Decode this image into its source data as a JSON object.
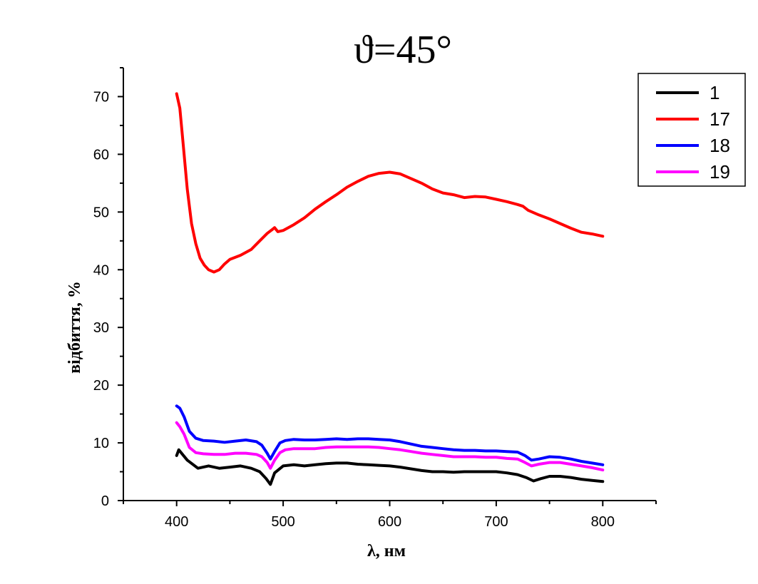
{
  "chart_data": {
    "type": "line",
    "title": "ϑ=45°",
    "xlabel": "λ, нм",
    "ylabel": "відбиття, %",
    "xlim": [
      350,
      850
    ],
    "ylim": [
      0,
      75
    ],
    "xticks": [
      400,
      500,
      600,
      700,
      800
    ],
    "yticks": [
      0,
      10,
      20,
      30,
      40,
      50,
      60,
      70
    ],
    "xtick_labels": [
      "400",
      "500",
      "600",
      "700",
      "800"
    ],
    "ytick_labels": [
      "0",
      "10",
      "20",
      "30",
      "40",
      "50",
      "60",
      "70"
    ],
    "grid": false,
    "legend_position": "top-right",
    "series": [
      {
        "name": "1",
        "color": "#000000",
        "x": [
          400,
          402,
          410,
          420,
          430,
          440,
          450,
          460,
          470,
          478,
          484,
          488,
          492,
          500,
          510,
          520,
          530,
          540,
          550,
          560,
          570,
          580,
          590,
          600,
          610,
          620,
          630,
          640,
          650,
          660,
          670,
          680,
          690,
          700,
          710,
          720,
          728,
          735,
          742,
          750,
          760,
          770,
          780,
          790,
          800
        ],
        "y": [
          7.8,
          8.8,
          7.0,
          5.6,
          6.0,
          5.6,
          5.8,
          6.0,
          5.6,
          5.0,
          3.8,
          2.8,
          4.8,
          6.0,
          6.2,
          6.0,
          6.2,
          6.4,
          6.5,
          6.5,
          6.3,
          6.2,
          6.1,
          6.0,
          5.8,
          5.5,
          5.2,
          5.0,
          5.0,
          4.9,
          5.0,
          5.0,
          5.0,
          5.0,
          4.8,
          4.5,
          4.0,
          3.4,
          3.8,
          4.2,
          4.2,
          4.0,
          3.7,
          3.5,
          3.3
        ]
      },
      {
        "name": "17",
        "color": "#ff0000",
        "x": [
          400,
          403,
          406,
          410,
          414,
          418,
          422,
          426,
          430,
          435,
          440,
          445,
          450,
          460,
          470,
          478,
          485,
          490,
          492,
          495,
          500,
          510,
          520,
          530,
          540,
          550,
          560,
          570,
          580,
          590,
          600,
          610,
          620,
          630,
          640,
          650,
          660,
          670,
          680,
          690,
          700,
          710,
          720,
          725,
          730,
          740,
          750,
          760,
          770,
          780,
          790,
          800
        ],
        "y": [
          70.5,
          68.0,
          62.0,
          54.0,
          48.0,
          44.5,
          42.0,
          40.8,
          40.0,
          39.6,
          40.0,
          41.0,
          41.8,
          42.5,
          43.5,
          45.0,
          46.3,
          47.0,
          47.3,
          46.6,
          46.8,
          47.8,
          49.0,
          50.5,
          51.8,
          53.0,
          54.3,
          55.3,
          56.2,
          56.7,
          56.9,
          56.6,
          55.8,
          55.0,
          54.0,
          53.3,
          53.0,
          52.5,
          52.7,
          52.6,
          52.2,
          51.8,
          51.3,
          51.0,
          50.3,
          49.5,
          48.8,
          48.0,
          47.2,
          46.5,
          46.2,
          45.8
        ]
      },
      {
        "name": "18",
        "color": "#0000ff",
        "x": [
          400,
          403,
          407,
          412,
          418,
          425,
          435,
          445,
          455,
          465,
          475,
          480,
          485,
          488,
          492,
          497,
          502,
          510,
          520,
          530,
          540,
          550,
          560,
          570,
          580,
          590,
          600,
          610,
          620,
          630,
          640,
          650,
          660,
          670,
          680,
          690,
          700,
          710,
          720,
          727,
          733,
          740,
          750,
          760,
          770,
          780,
          790,
          800
        ],
        "y": [
          16.4,
          16.0,
          14.5,
          12.0,
          10.8,
          10.4,
          10.3,
          10.1,
          10.3,
          10.5,
          10.2,
          9.6,
          8.2,
          7.2,
          8.5,
          10.0,
          10.4,
          10.6,
          10.5,
          10.5,
          10.6,
          10.7,
          10.6,
          10.7,
          10.7,
          10.6,
          10.5,
          10.2,
          9.8,
          9.4,
          9.2,
          9.0,
          8.8,
          8.7,
          8.7,
          8.6,
          8.6,
          8.5,
          8.4,
          7.8,
          7.0,
          7.2,
          7.6,
          7.5,
          7.2,
          6.8,
          6.5,
          6.2
        ]
      },
      {
        "name": "19",
        "color": "#ff00ff",
        "x": [
          400,
          403,
          407,
          412,
          418,
          425,
          435,
          445,
          455,
          465,
          475,
          480,
          485,
          488,
          492,
          497,
          502,
          510,
          520,
          530,
          540,
          550,
          560,
          570,
          580,
          590,
          600,
          610,
          620,
          630,
          640,
          650,
          660,
          670,
          680,
          690,
          700,
          710,
          720,
          727,
          733,
          740,
          750,
          760,
          770,
          780,
          790,
          800
        ],
        "y": [
          13.5,
          12.8,
          11.5,
          9.2,
          8.3,
          8.1,
          8.0,
          8.0,
          8.2,
          8.2,
          8.0,
          7.6,
          6.6,
          5.6,
          7.0,
          8.3,
          8.8,
          9.0,
          9.0,
          9.0,
          9.2,
          9.3,
          9.3,
          9.3,
          9.3,
          9.2,
          9.0,
          8.8,
          8.5,
          8.2,
          8.0,
          7.8,
          7.6,
          7.6,
          7.6,
          7.5,
          7.5,
          7.3,
          7.2,
          6.6,
          6.0,
          6.3,
          6.6,
          6.6,
          6.3,
          6.0,
          5.7,
          5.3
        ]
      }
    ]
  }
}
